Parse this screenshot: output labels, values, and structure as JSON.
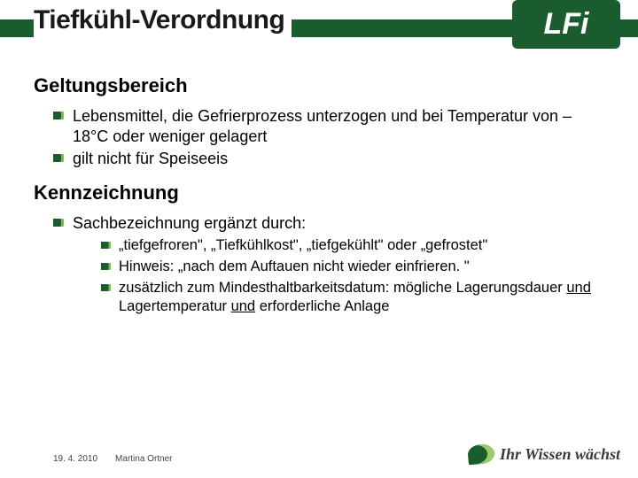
{
  "title": "Tiefkühl-Verordnung",
  "logo": "LFi",
  "sections": [
    {
      "heading": "Geltungsbereich",
      "items": [
        {
          "text": "Lebensmittel, die Gefrierprozess unterzogen und bei Temperatur von – 18°C oder weniger gelagert"
        },
        {
          "text": "gilt nicht für Speiseeis"
        }
      ]
    },
    {
      "heading": "Kennzeichnung",
      "items": [
        {
          "text": "Sachbezeichnung ergänzt durch:",
          "sub": [
            "„tiefgefroren\", „Tiefkühlkost\", „tiefgekühlt\" oder „gefrostet\"",
            "Hinweis: „nach dem Auftauen nicht wieder einfrieren. \"",
            "__HTML__zusätzlich zum Mindesthaltbarkeitsdatum: mögliche Lagerungsdauer <span class=\"u\">und</span> Lagertemperatur <span class=\"u\">und</span> erforderliche Anlage"
          ]
        }
      ]
    }
  ],
  "footer": {
    "date": "19. 4. 2010",
    "author": "Martina Ortner"
  },
  "slogan": "Ihr Wissen wächst"
}
